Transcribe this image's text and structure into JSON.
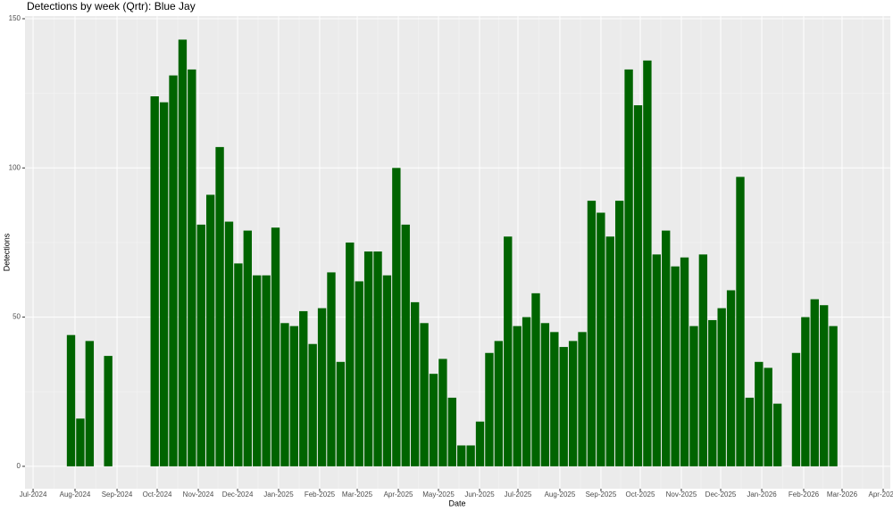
{
  "chart_data": {
    "type": "bar",
    "title": "Detections by week (Qrtr): Blue Jay",
    "x_label": "Date",
    "y_label": "Detections",
    "color": "#006400",
    "grid": true,
    "x": [
      0,
      1,
      2,
      4,
      9,
      10,
      11,
      12,
      13,
      14,
      15,
      16,
      17,
      18,
      19,
      20,
      21,
      22,
      23,
      24,
      25,
      26,
      27,
      28,
      29,
      30,
      31,
      32,
      33,
      34,
      35,
      36,
      37,
      38,
      39,
      40,
      41,
      42,
      43,
      44,
      45,
      46,
      47,
      48,
      49,
      50,
      51,
      52,
      53,
      54,
      55,
      56,
      57,
      58,
      59,
      60,
      61,
      62,
      63,
      64,
      65,
      66,
      67,
      68,
      69,
      70,
      71,
      72,
      73,
      74,
      75,
      76,
      78,
      79,
      80,
      81,
      82
    ],
    "values": [
      44,
      16,
      42,
      37,
      124,
      122,
      131,
      143,
      133,
      81,
      91,
      107,
      82,
      68,
      79,
      64,
      64,
      80,
      48,
      47,
      52,
      41,
      53,
      65,
      35,
      75,
      62,
      72,
      72,
      64,
      100,
      81,
      55,
      48,
      31,
      36,
      23,
      7,
      7,
      15,
      38,
      42,
      77,
      47,
      50,
      58,
      48,
      45,
      40,
      42,
      45,
      89,
      85,
      77,
      89,
      133,
      121,
      136,
      71,
      79,
      67,
      70,
      47,
      71,
      49,
      53,
      59,
      97,
      23,
      35,
      33,
      21,
      38,
      50,
      56,
      54,
      47
    ],
    "xlim": [
      -4.95,
      88.14
    ],
    "xticks": [
      {
        "value": -4.08,
        "label": "Jul-2024"
      },
      {
        "value": 0.43,
        "label": "Aug-2024"
      },
      {
        "value": 4.95,
        "label": "Sep-2024"
      },
      {
        "value": 9.27,
        "label": "Oct-2024"
      },
      {
        "value": 13.69,
        "label": "Nov-2024"
      },
      {
        "value": 17.92,
        "label": "Dec-2024"
      },
      {
        "value": 22.33,
        "label": "Jan-2025"
      },
      {
        "value": 26.75,
        "label": "Feb-2025"
      },
      {
        "value": 30.79,
        "label": "Mar-2025"
      },
      {
        "value": 35.21,
        "label": "Apr-2025"
      },
      {
        "value": 39.53,
        "label": "May-2025"
      },
      {
        "value": 43.95,
        "label": "Jun-2025"
      },
      {
        "value": 48.08,
        "label": "Jul-2025"
      },
      {
        "value": 52.59,
        "label": "Aug-2025"
      },
      {
        "value": 57.01,
        "label": "Sep-2025"
      },
      {
        "value": 61.24,
        "label": "Oct-2025"
      },
      {
        "value": 65.66,
        "label": "Nov-2025"
      },
      {
        "value": 69.89,
        "label": "Dec-2025"
      },
      {
        "value": 74.31,
        "label": "Jan-2026"
      },
      {
        "value": 78.82,
        "label": "Feb-2026"
      },
      {
        "value": 82.95,
        "label": "Mar-2026"
      },
      {
        "value": 87.37,
        "label": "Apr-2026"
      }
    ],
    "ylim": [
      -7.5,
      150.9
    ],
    "yticks": [
      0,
      50,
      100,
      150
    ]
  }
}
